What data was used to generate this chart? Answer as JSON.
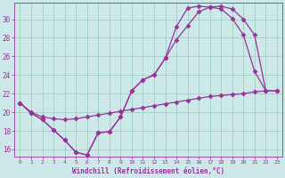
{
  "xlabel": "Windchill (Refroidissement éolien,°C)",
  "bg_color": "#cce8e8",
  "line_color": "#993399",
  "grid_color": "#99ccbb",
  "x_ticks": [
    0,
    1,
    2,
    3,
    4,
    5,
    6,
    7,
    8,
    9,
    10,
    11,
    12,
    13,
    14,
    15,
    16,
    17,
    18,
    19,
    20,
    21,
    22,
    23
  ],
  "y_ticks": [
    16,
    18,
    20,
    22,
    24,
    26,
    28,
    30
  ],
  "xlim": [
    -0.5,
    23.5
  ],
  "ylim": [
    15.2,
    31.8
  ],
  "curve1_x": [
    0,
    1,
    2,
    3,
    4,
    5,
    6,
    7,
    8,
    9,
    10,
    11,
    12,
    13,
    14,
    15,
    16,
    17,
    18,
    19,
    20,
    21,
    22
  ],
  "curve1_y": [
    21.0,
    19.9,
    19.2,
    18.1,
    17.0,
    15.7,
    15.4,
    17.8,
    17.9,
    19.5,
    22.3,
    23.5,
    24.0,
    25.8,
    29.2,
    31.2,
    31.4,
    31.3,
    31.1,
    30.1,
    28.3,
    24.4,
    22.3
  ],
  "curve2_x": [
    0,
    1,
    2,
    3,
    4,
    5,
    6,
    7,
    8,
    9,
    10,
    11,
    12,
    13,
    14,
    15,
    16,
    17,
    18,
    19,
    20,
    21,
    22,
    23
  ],
  "curve2_y": [
    21.0,
    19.9,
    19.2,
    18.1,
    17.0,
    15.7,
    15.4,
    17.8,
    17.9,
    19.5,
    22.3,
    23.5,
    24.0,
    25.8,
    27.8,
    29.3,
    30.8,
    31.3,
    31.4,
    31.1,
    30.0,
    28.3,
    22.3,
    22.3
  ],
  "curve3_x": [
    0,
    1,
    2,
    3,
    4,
    5,
    6,
    7,
    8,
    9,
    10,
    11,
    12,
    13,
    14,
    15,
    16,
    17,
    18,
    19,
    20,
    21,
    22,
    23
  ],
  "curve3_y": [
    21.0,
    20.0,
    19.5,
    19.3,
    19.2,
    19.3,
    19.5,
    19.7,
    19.9,
    20.1,
    20.3,
    20.5,
    20.7,
    20.9,
    21.1,
    21.3,
    21.5,
    21.7,
    21.8,
    21.9,
    22.0,
    22.2,
    22.3,
    22.3
  ]
}
